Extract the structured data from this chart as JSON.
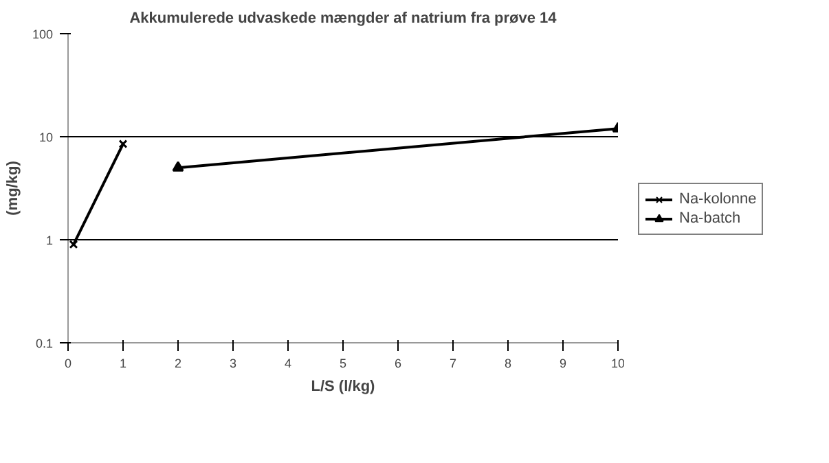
{
  "chart_data": {
    "type": "line",
    "title": "Akkumulerede udvaskede mængder af natrium fra prøve 14",
    "xlabel": "L/S (l/kg)",
    "ylabel": "(mg/kg)",
    "series": [
      {
        "name": "Na-kolonne",
        "color": "#000000",
        "marker": "cross",
        "x": [
          0.1,
          1
        ],
        "values": [
          0.9,
          8.5
        ]
      },
      {
        "name": "Na-batch",
        "color": "#000000",
        "marker": "triangle",
        "x": [
          2,
          10
        ],
        "values": [
          5,
          12
        ]
      }
    ],
    "xlim": [
      0,
      10
    ],
    "xticks": [
      0,
      1,
      2,
      3,
      4,
      5,
      6,
      7,
      8,
      9,
      10
    ],
    "ylim": [
      0.1,
      100
    ],
    "yticks": [
      0.1,
      1,
      10,
      100
    ],
    "log": "y",
    "grid": "y",
    "legend": "right",
    "line_style": "solid"
  }
}
